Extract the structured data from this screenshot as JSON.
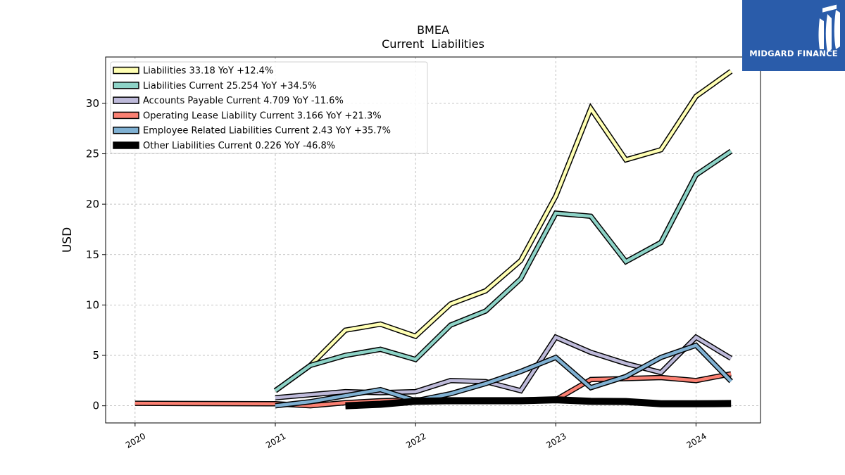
{
  "chart_data": {
    "type": "line",
    "title": "BMEA",
    "subtitle": "Current  Liabilities",
    "ylabel": "USD",
    "xlabel": "",
    "ylim": [
      -1.7,
      34.6
    ],
    "xlim": [
      2019.79,
      2024.46
    ],
    "yticks": [
      0,
      5,
      10,
      15,
      20,
      25,
      30
    ],
    "xticks": [
      2020,
      2021,
      2022,
      2023,
      2024
    ],
    "xtick_labels": [
      "2020",
      "2021",
      "2022",
      "2023",
      "2024"
    ],
    "grid": true,
    "legend_position": "top-left",
    "series": [
      {
        "name": "Liabilities  33.18 YoY +12.4%",
        "color": "#ffffb3",
        "x": [
          2021.0,
          2021.25,
          2021.5,
          2021.75,
          2022.0,
          2022.25,
          2022.5,
          2022.75,
          2023.0,
          2023.25,
          2023.5,
          2023.75,
          2024.0,
          2024.25
        ],
        "y": [
          1.5,
          4.0,
          7.5,
          8.1,
          6.9,
          10.1,
          11.4,
          14.4,
          20.8,
          29.5,
          24.4,
          25.4,
          30.7,
          33.18
        ]
      },
      {
        "name": "Liabilities Current  25.254 YoY +34.5%",
        "color": "#8dd3c7",
        "x": [
          2021.0,
          2021.25,
          2021.5,
          2021.75,
          2022.0,
          2022.25,
          2022.5,
          2022.75,
          2023.0,
          2023.25,
          2023.5,
          2023.75,
          2024.0,
          2024.25
        ],
        "y": [
          1.5,
          4.0,
          5.0,
          5.6,
          4.6,
          8.0,
          9.4,
          12.6,
          19.1,
          18.8,
          14.3,
          16.2,
          22.9,
          25.254
        ]
      },
      {
        "name": "Accounts Payable Current  4.709 YoY -11.6%",
        "color": "#bebada",
        "x": [
          2021.0,
          2021.25,
          2021.5,
          2021.75,
          2022.0,
          2022.25,
          2022.5,
          2022.75,
          2023.0,
          2023.25,
          2023.5,
          2023.75,
          2024.0,
          2024.25
        ],
        "y": [
          0.8,
          1.1,
          1.4,
          1.3,
          1.4,
          2.5,
          2.4,
          1.5,
          6.8,
          5.3,
          4.2,
          3.3,
          6.8,
          4.709
        ]
      },
      {
        "name": "Operating Lease Liability Current  3.166 YoY +21.3%",
        "color": "#fb8072",
        "x": [
          2020.0,
          2021.0,
          2021.25,
          2021.5,
          2021.75,
          2022.0,
          2022.25,
          2022.5,
          2022.75,
          2023.0,
          2023.25,
          2023.5,
          2023.75,
          2024.0,
          2024.25
        ],
        "y": [
          0.25,
          0.2,
          0.0,
          0.3,
          0.5,
          0.6,
          0.6,
          0.6,
          0.6,
          0.6,
          2.6,
          2.7,
          2.8,
          2.5,
          3.166
        ]
      },
      {
        "name": "Employee Related Liabilities Current  2.43 YoY +35.7%",
        "color": "#80b1d3",
        "x": [
          2021.0,
          2021.25,
          2021.5,
          2021.75,
          2022.0,
          2022.25,
          2022.5,
          2022.75,
          2023.0,
          2023.25,
          2023.5,
          2023.75,
          2024.0,
          2024.25
        ],
        "y": [
          0.0,
          0.4,
          1.0,
          1.6,
          0.5,
          1.2,
          2.2,
          3.4,
          4.8,
          1.8,
          2.9,
          4.8,
          6.0,
          2.43
        ]
      },
      {
        "name": "Other Liabilities Current  0.226 YoY -46.8%",
        "color": "#000000",
        "x": [
          2021.5,
          2021.75,
          2022.0,
          2022.25,
          2022.5,
          2022.75,
          2023.0,
          2023.25,
          2023.5,
          2023.75,
          2024.0,
          2024.25
        ],
        "y": [
          0.0,
          0.15,
          0.45,
          0.5,
          0.5,
          0.5,
          0.6,
          0.45,
          0.42,
          0.2,
          0.2,
          0.226
        ]
      }
    ]
  },
  "logo": {
    "text": "MIDGARD FINANCE",
    "background": "#2a5caa"
  }
}
